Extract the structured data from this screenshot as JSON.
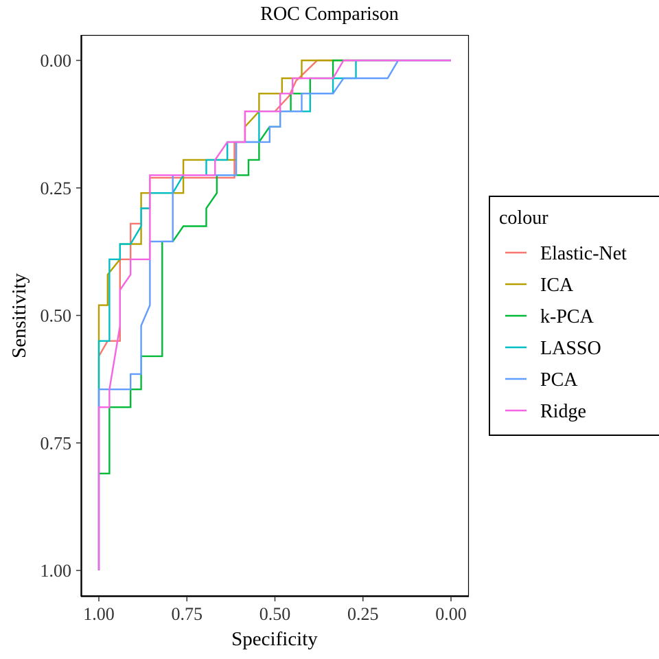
{
  "chart_data": {
    "type": "line",
    "title": "ROC Comparison",
    "xlabel": "Specificity",
    "ylabel": "Sensitivity",
    "x_reversed": true,
    "y_reversed": true,
    "xlim": [
      1.0,
      0.0
    ],
    "ylim": [
      0.0,
      1.0
    ],
    "x_ticks": [
      "1.00",
      "0.75",
      "0.50",
      "0.25",
      "0.00"
    ],
    "y_ticks": [
      "0.00",
      "0.25",
      "0.50",
      "0.75",
      "1.00"
    ],
    "grid": false,
    "legend": {
      "title": "colour",
      "position": "right"
    },
    "series": [
      {
        "name": "Elastic-Net",
        "color": "#F8766D",
        "points": [
          [
            1.0,
            1.0
          ],
          [
            1.0,
            0.58
          ],
          [
            0.975,
            0.55
          ],
          [
            0.94,
            0.55
          ],
          [
            0.94,
            0.39
          ],
          [
            0.91,
            0.39
          ],
          [
            0.91,
            0.32
          ],
          [
            0.88,
            0.32
          ],
          [
            0.88,
            0.29
          ],
          [
            0.855,
            0.29
          ],
          [
            0.855,
            0.23
          ],
          [
            0.615,
            0.23
          ],
          [
            0.615,
            0.16
          ],
          [
            0.585,
            0.16
          ],
          [
            0.585,
            0.1
          ],
          [
            0.5,
            0.1
          ],
          [
            0.46,
            0.07
          ],
          [
            0.44,
            0.04
          ],
          [
            0.38,
            0.0
          ],
          [
            0.0,
            0.0
          ]
        ]
      },
      {
        "name": "ICA",
        "color": "#B79F00",
        "points": [
          [
            1.0,
            1.0
          ],
          [
            1.0,
            0.48
          ],
          [
            0.975,
            0.48
          ],
          [
            0.975,
            0.42
          ],
          [
            0.94,
            0.39
          ],
          [
            0.94,
            0.36
          ],
          [
            0.88,
            0.36
          ],
          [
            0.88,
            0.26
          ],
          [
            0.76,
            0.26
          ],
          [
            0.76,
            0.195
          ],
          [
            0.61,
            0.195
          ],
          [
            0.61,
            0.16
          ],
          [
            0.585,
            0.16
          ],
          [
            0.585,
            0.13
          ],
          [
            0.545,
            0.1
          ],
          [
            0.545,
            0.065
          ],
          [
            0.48,
            0.065
          ],
          [
            0.48,
            0.035
          ],
          [
            0.424,
            0.035
          ],
          [
            0.424,
            0.0
          ],
          [
            0.0,
            0.0
          ]
        ]
      },
      {
        "name": "k-PCA",
        "color": "#00BA38",
        "points": [
          [
            1.0,
            1.0
          ],
          [
            1.0,
            0.81
          ],
          [
            0.97,
            0.81
          ],
          [
            0.97,
            0.68
          ],
          [
            0.91,
            0.68
          ],
          [
            0.91,
            0.645
          ],
          [
            0.88,
            0.645
          ],
          [
            0.88,
            0.58
          ],
          [
            0.82,
            0.58
          ],
          [
            0.82,
            0.355
          ],
          [
            0.79,
            0.355
          ],
          [
            0.76,
            0.325
          ],
          [
            0.695,
            0.325
          ],
          [
            0.695,
            0.29
          ],
          [
            0.665,
            0.26
          ],
          [
            0.665,
            0.225
          ],
          [
            0.575,
            0.225
          ],
          [
            0.575,
            0.195
          ],
          [
            0.545,
            0.195
          ],
          [
            0.545,
            0.16
          ],
          [
            0.515,
            0.13
          ],
          [
            0.485,
            0.13
          ],
          [
            0.485,
            0.1
          ],
          [
            0.455,
            0.1
          ],
          [
            0.455,
            0.065
          ],
          [
            0.4,
            0.065
          ],
          [
            0.4,
            0.035
          ],
          [
            0.335,
            0.035
          ],
          [
            0.335,
            0.0
          ],
          [
            0.0,
            0.0
          ]
        ]
      },
      {
        "name": "LASSO",
        "color": "#00BFC4",
        "points": [
          [
            1.0,
            1.0
          ],
          [
            1.0,
            0.55
          ],
          [
            0.97,
            0.55
          ],
          [
            0.97,
            0.39
          ],
          [
            0.94,
            0.39
          ],
          [
            0.94,
            0.36
          ],
          [
            0.91,
            0.36
          ],
          [
            0.88,
            0.325
          ],
          [
            0.88,
            0.29
          ],
          [
            0.855,
            0.29
          ],
          [
            0.855,
            0.26
          ],
          [
            0.79,
            0.26
          ],
          [
            0.76,
            0.225
          ],
          [
            0.695,
            0.225
          ],
          [
            0.695,
            0.195
          ],
          [
            0.635,
            0.195
          ],
          [
            0.635,
            0.16
          ],
          [
            0.545,
            0.16
          ],
          [
            0.545,
            0.1
          ],
          [
            0.4,
            0.1
          ],
          [
            0.4,
            0.065
          ],
          [
            0.335,
            0.065
          ],
          [
            0.335,
            0.035
          ],
          [
            0.27,
            0.035
          ],
          [
            0.27,
            0.0
          ],
          [
            0.0,
            0.0
          ]
        ]
      },
      {
        "name": "PCA",
        "color": "#619CFF",
        "points": [
          [
            1.0,
            1.0
          ],
          [
            1.0,
            0.645
          ],
          [
            0.91,
            0.645
          ],
          [
            0.91,
            0.615
          ],
          [
            0.88,
            0.615
          ],
          [
            0.88,
            0.52
          ],
          [
            0.855,
            0.48
          ],
          [
            0.855,
            0.355
          ],
          [
            0.79,
            0.355
          ],
          [
            0.79,
            0.225
          ],
          [
            0.61,
            0.225
          ],
          [
            0.61,
            0.16
          ],
          [
            0.515,
            0.16
          ],
          [
            0.515,
            0.13
          ],
          [
            0.485,
            0.13
          ],
          [
            0.485,
            0.1
          ],
          [
            0.424,
            0.1
          ],
          [
            0.424,
            0.065
          ],
          [
            0.335,
            0.065
          ],
          [
            0.305,
            0.035
          ],
          [
            0.18,
            0.035
          ],
          [
            0.15,
            0.0
          ],
          [
            0.0,
            0.0
          ]
        ]
      },
      {
        "name": "Ridge",
        "color": "#F564E3",
        "points": [
          [
            1.0,
            1.0
          ],
          [
            1.0,
            0.68
          ],
          [
            0.97,
            0.68
          ],
          [
            0.97,
            0.645
          ],
          [
            0.94,
            0.52
          ],
          [
            0.94,
            0.45
          ],
          [
            0.91,
            0.42
          ],
          [
            0.91,
            0.39
          ],
          [
            0.855,
            0.39
          ],
          [
            0.855,
            0.225
          ],
          [
            0.79,
            0.225
          ],
          [
            0.67,
            0.225
          ],
          [
            0.67,
            0.195
          ],
          [
            0.635,
            0.16
          ],
          [
            0.585,
            0.16
          ],
          [
            0.585,
            0.1
          ],
          [
            0.485,
            0.1
          ],
          [
            0.485,
            0.065
          ],
          [
            0.45,
            0.065
          ],
          [
            0.45,
            0.035
          ],
          [
            0.335,
            0.035
          ],
          [
            0.305,
            0.0
          ],
          [
            0.0,
            0.0
          ]
        ]
      }
    ]
  }
}
